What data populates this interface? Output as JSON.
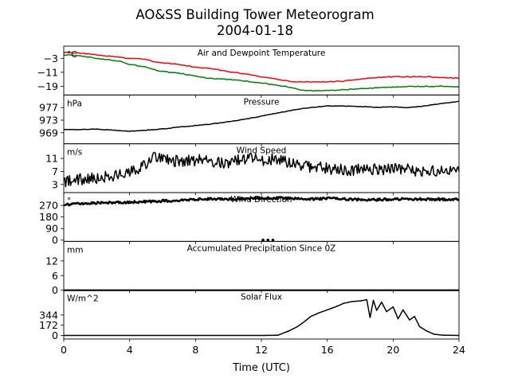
{
  "title": "AO&SS Building Tower Meteorogram",
  "date": "2004-01-18",
  "x_axis": {
    "label": "Time (UTC)",
    "range": [
      0,
      24
    ],
    "ticks": [
      0,
      4,
      8,
      12,
      16,
      20,
      24
    ]
  },
  "chart_data": [
    {
      "type": "line",
      "title": "Air and Dewpoint Temperature",
      "unit": "°C",
      "yticks": [
        -3,
        -11,
        -19
      ],
      "ylim": [
        -24,
        4
      ],
      "series": [
        {
          "color": "#ff0000",
          "x": [
            0,
            1,
            2,
            3,
            3.5,
            4,
            4.5,
            5,
            5.5,
            6,
            7,
            8,
            9,
            10,
            11,
            12,
            13,
            14,
            14.5,
            15,
            16,
            17,
            18,
            19,
            20,
            21,
            22,
            23,
            24
          ],
          "y": [
            0.5,
            0,
            -1,
            -2,
            -2.5,
            -3,
            -3,
            -3.5,
            -5,
            -5.5,
            -6.5,
            -8,
            -9,
            -10.5,
            -12,
            -13.5,
            -15,
            -16.5,
            -16.5,
            -16.5,
            -16.5,
            -16,
            -15,
            -14,
            -13.5,
            -13.5,
            -13.5,
            -14,
            -14.5
          ]
        },
        {
          "color": "#008000",
          "x": [
            0,
            1,
            2,
            2.5,
            3,
            3.5,
            4,
            5,
            5.5,
            6,
            7,
            8,
            8.5,
            9,
            10,
            11,
            12,
            13,
            14,
            14.5,
            15,
            16,
            17,
            18,
            19,
            20,
            21,
            22,
            23,
            24
          ],
          "y": [
            -1,
            -1.5,
            -3,
            -3.5,
            -4,
            -5,
            -6.5,
            -8,
            -9.5,
            -10.5,
            -11.5,
            -13,
            -14,
            -14.5,
            -15,
            -16,
            -17,
            -18.5,
            -20,
            -21.5,
            -21.5,
            -21.5,
            -21,
            -20.5,
            -20,
            -19.5,
            -19,
            -19,
            -19,
            -19.5
          ]
        }
      ]
    },
    {
      "type": "line",
      "title": "Pressure",
      "unit": "hPa",
      "yticks": [
        977,
        973,
        969
      ],
      "ylim": [
        965.5,
        981
      ],
      "series": [
        {
          "color": "#000000",
          "x": [
            0,
            1,
            2,
            3,
            4,
            5,
            6,
            7,
            8,
            9,
            10,
            11,
            12,
            13,
            14,
            15,
            16,
            17,
            18,
            19,
            20,
            21,
            22,
            23,
            24
          ],
          "y": [
            970,
            970,
            970.2,
            969.8,
            969.5,
            969.8,
            970.2,
            970.8,
            971.3,
            971.8,
            972.5,
            973.3,
            974.3,
            975.3,
            976.3,
            977,
            977.5,
            977.5,
            977.3,
            977.1,
            977.2,
            977,
            977.6,
            978.3,
            979
          ]
        }
      ]
    },
    {
      "type": "line",
      "title": "Wind Speed",
      "unit": "m/s",
      "yticks": [
        11,
        7,
        3
      ],
      "ylim": [
        0.5,
        15.5
      ],
      "series": [
        {
          "color": "#000000",
          "x": [
            0,
            1,
            2,
            3,
            4,
            5,
            5.5,
            6,
            7,
            8,
            9,
            10,
            11,
            12,
            13,
            13.5,
            14,
            15,
            16,
            17,
            18,
            19,
            20,
            21,
            22,
            23,
            24
          ],
          "y": [
            4,
            4.5,
            5,
            5.5,
            6.5,
            9,
            11.5,
            11,
            10,
            10.5,
            10,
            9.5,
            11,
            10.5,
            11,
            10,
            9,
            8.5,
            8,
            7.5,
            7.5,
            7.5,
            8,
            7.5,
            7,
            7,
            7
          ]
        }
      ]
    },
    {
      "type": "line",
      "title": "Wind Direction",
      "unit": "°",
      "yticks": [
        270,
        180,
        90,
        0
      ],
      "ylim": [
        -10,
        370
      ],
      "series": [
        {
          "color": "#000000",
          "x": [
            0,
            1,
            2,
            3,
            4,
            5,
            6,
            7,
            8,
            9,
            10,
            11,
            12,
            13,
            14,
            15,
            16,
            17,
            18,
            19,
            20,
            21,
            22,
            23,
            24
          ],
          "y": [
            275,
            285,
            290,
            292,
            295,
            300,
            305,
            310,
            318,
            322,
            320,
            322,
            325,
            328,
            322,
            320,
            325,
            318,
            315,
            315,
            318,
            320,
            318,
            318,
            320
          ]
        },
        {
          "color": "#000000",
          "style": "points",
          "x": [
            12.1,
            12.4,
            12.7
          ],
          "y": [
            0,
            0,
            0
          ]
        }
      ]
    },
    {
      "type": "area",
      "title": "Accumulated Precipitation Since 0Z",
      "unit": "mm",
      "yticks": [
        12,
        6,
        0
      ],
      "ylim": [
        0,
        20
      ],
      "series": [
        {
          "color": "#000000",
          "x": [
            0,
            24
          ],
          "y": [
            0,
            0
          ]
        }
      ]
    },
    {
      "type": "line",
      "title": "Solar Flux",
      "unit": "W/m^2",
      "yticks": [
        344,
        172,
        0
      ],
      "ylim": [
        -60,
        760
      ],
      "series": [
        {
          "color": "#000000",
          "x": [
            0,
            8,
            12,
            13,
            13.7,
            14.2,
            14.6,
            15,
            15.5,
            16,
            16.5,
            17,
            17.5,
            18,
            18.4,
            18.6,
            18.8,
            19,
            19.3,
            19.6,
            20,
            20.3,
            20.6,
            21,
            21.3,
            21.6,
            22,
            22.5,
            23,
            24
          ],
          "y": [
            0,
            0,
            0,
            3,
            80,
            150,
            230,
            320,
            380,
            430,
            480,
            540,
            570,
            580,
            600,
            300,
            590,
            420,
            560,
            400,
            480,
            280,
            430,
            260,
            320,
            150,
            80,
            20,
            5,
            0
          ]
        }
      ]
    }
  ]
}
